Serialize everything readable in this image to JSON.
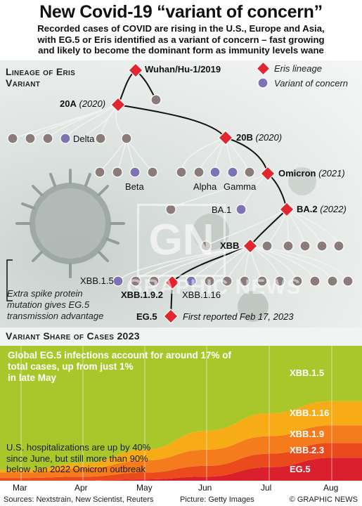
{
  "header": {
    "title": "New Covid-19 “variant of concern”",
    "subtitle_lines": [
      "Recorded cases of COVID are rising in the U.S., Europe and Asia,",
      "with EG.5 or Eris identified as a variant of concern – fast growing",
      "and likely to become the dominant form as immunity levels wane"
    ]
  },
  "lineage": {
    "heading_lines": [
      "Lineage of Eris",
      "Variant"
    ],
    "legend": {
      "eris": "Eris lineage",
      "concern": "Variant of concern"
    },
    "nodes": {
      "wuhan": "Wuhan/Hu-1/2019",
      "n20a": "20A",
      "n20a_year": "(2020)",
      "delta": "Delta",
      "n20b": "20B",
      "n20b_year": "(2020)",
      "beta": "Beta",
      "alpha": "Alpha",
      "gamma": "Gamma",
      "omicron": "Omicron",
      "omicron_year": "(2021)",
      "ba1": "BA.1",
      "ba2": "BA.2",
      "ba2_year": "(2022)",
      "xbb": "XBB",
      "xbb15": "XBB.1.5",
      "xbb192": "XBB.1.9.2",
      "xbb116": "XBB.1.16",
      "eg5": "EG.5",
      "eg5_note": "First reported Feb 17, 2023"
    },
    "spike_note_lines": [
      "Extra spike protein",
      "mutation gives EG.5",
      "transmission advantage"
    ],
    "watermark": {
      "logo": "GN",
      "text": "GRAPHIC NEWS"
    }
  },
  "share": {
    "heading": "Variant Share of Cases 2023",
    "note_top_lines": [
      "Global EG.5 infections account for around 17% of",
      "total cases, up from just 1%",
      "in late May"
    ],
    "note_bottom_lines": [
      "U.S. hospitalizations are up by 40%",
      "since June, but still more than 90%",
      "below Jan 2022 Omicron outbreak"
    ]
  },
  "chart_data": {
    "type": "area",
    "title": "Variant Share of Cases 2023",
    "x": [
      "Mar",
      "Apr",
      "May",
      "Jun",
      "Jul",
      "Aug"
    ],
    "stacking": "stacked-100%",
    "series": [
      {
        "name": "EG.5",
        "color": "#d9202c",
        "values": [
          0,
          0,
          1,
          3,
          10,
          17
        ]
      },
      {
        "name": "XBB.2.3",
        "color": "#ea4a1c",
        "values": [
          2,
          3,
          5,
          8,
          10,
          11
        ]
      },
      {
        "name": "XBB.1.9",
        "color": "#f47c1c",
        "values": [
          4,
          6,
          9,
          12,
          13,
          13
        ]
      },
      {
        "name": "XBB.1.16",
        "color": "#f6ab17",
        "values": [
          2,
          4,
          8,
          14,
          17,
          18
        ]
      },
      {
        "name": "XBB.1.5",
        "color": "#a9c72a",
        "values": [
          92,
          87,
          77,
          63,
          50,
          41
        ]
      }
    ]
  },
  "footer": {
    "sources": "Sources: Nextstrain, New Scientist, Reuters",
    "picture": "Picture: Getty Images",
    "credit": "© GRAPHIC NEWS"
  }
}
